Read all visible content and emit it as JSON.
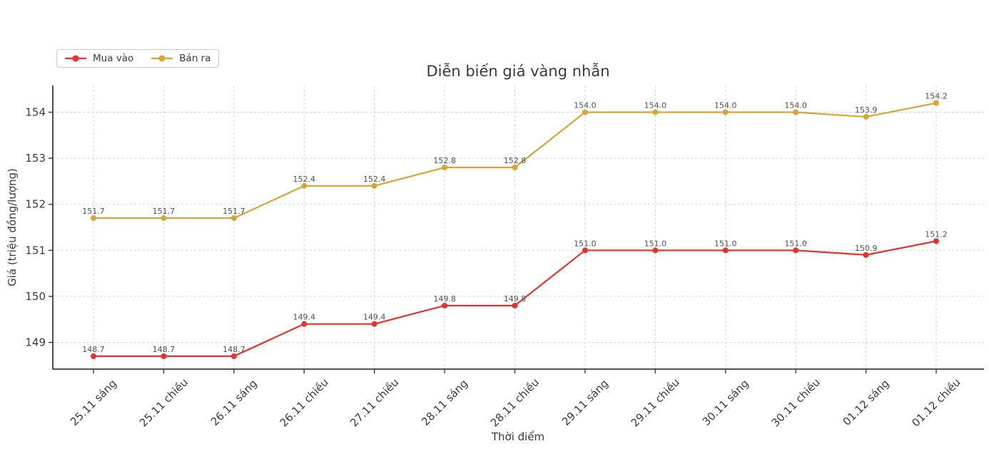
{
  "chart_data": {
    "type": "line",
    "title": "Diễn biến giá vàng nhẫn",
    "xlabel": "Thời điểm",
    "ylabel": "Giá (triệu đồng/lượng)",
    "categories": [
      "25.11 sáng",
      "25.11 chiều",
      "26.11 sáng",
      "26.11 chiều",
      "27.11 chiều",
      "28.11 sáng",
      "28.11 chiều",
      "29.11 sáng",
      "29.11 chiều",
      "30.11 sáng",
      "30.11 chiều",
      "01.12 sáng",
      "01.12 chiều"
    ],
    "series": [
      {
        "name": "Mua vào",
        "color": "#e8312a",
        "values": [
          148.7,
          148.7,
          148.7,
          149.4,
          149.4,
          149.8,
          149.8,
          151.0,
          151.0,
          151.0,
          151.0,
          150.9,
          151.2
        ]
      },
      {
        "name": "Bán ra",
        "color": "#d9a432",
        "values": [
          151.7,
          151.7,
          151.7,
          152.4,
          152.4,
          152.8,
          152.8,
          154.0,
          154.0,
          154.0,
          154.0,
          153.9,
          154.2
        ]
      }
    ],
    "yticks": [
      149,
      150,
      151,
      152,
      153,
      154
    ],
    "ylim": [
      148.42,
      154.58
    ],
    "grid": true,
    "grid_style": "dashed",
    "legend_position": "top-left",
    "data_labels": true,
    "colors": {
      "grid": "#d2d2d2",
      "axis": "#3b3b3b",
      "tick_text": "#3a3a3a",
      "data_label_text": "#4f4f4f",
      "title_text": "#3a3a3a",
      "legend_border": "#cccccc",
      "background": "#ffffff"
    }
  }
}
